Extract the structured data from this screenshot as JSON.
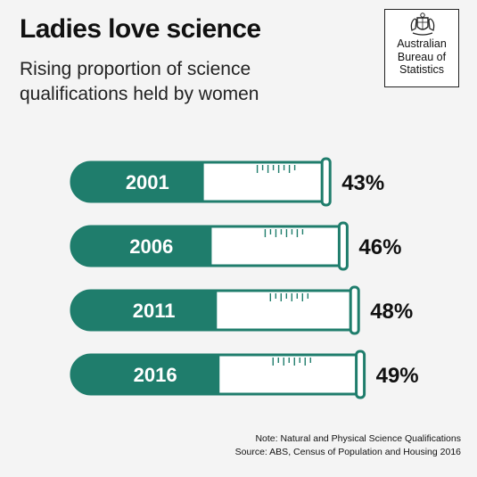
{
  "title": "Ladies love science",
  "subtitle": "Rising proportion of science qualifications held by women",
  "logo": {
    "line1": "Australian",
    "line2": "Bureau of",
    "line3": "Statistics"
  },
  "note": {
    "line1": "Note: Natural and Physical Science Qualifications",
    "line2": "Source: ABS, Census of Population and Housing 2016"
  },
  "colors": {
    "fill": "#1f7d6c",
    "tube_border": "#1f7d6c",
    "tube_body": "#ffffff",
    "background": "#f4f4f4",
    "text": "#111111"
  },
  "chart_data": {
    "type": "bar",
    "orientation": "horizontal",
    "categories": [
      "2001",
      "2006",
      "2011",
      "2016"
    ],
    "values": [
      43,
      46,
      48,
      49
    ],
    "value_labels": [
      "43%",
      "46%",
      "48%",
      "49%"
    ],
    "unit": "%",
    "title": "Ladies love science",
    "subtitle": "Rising proportion of science qualifications held by women",
    "xlabel": "",
    "ylabel": "",
    "grid": false,
    "legend": "none",
    "style": "test-tube"
  }
}
